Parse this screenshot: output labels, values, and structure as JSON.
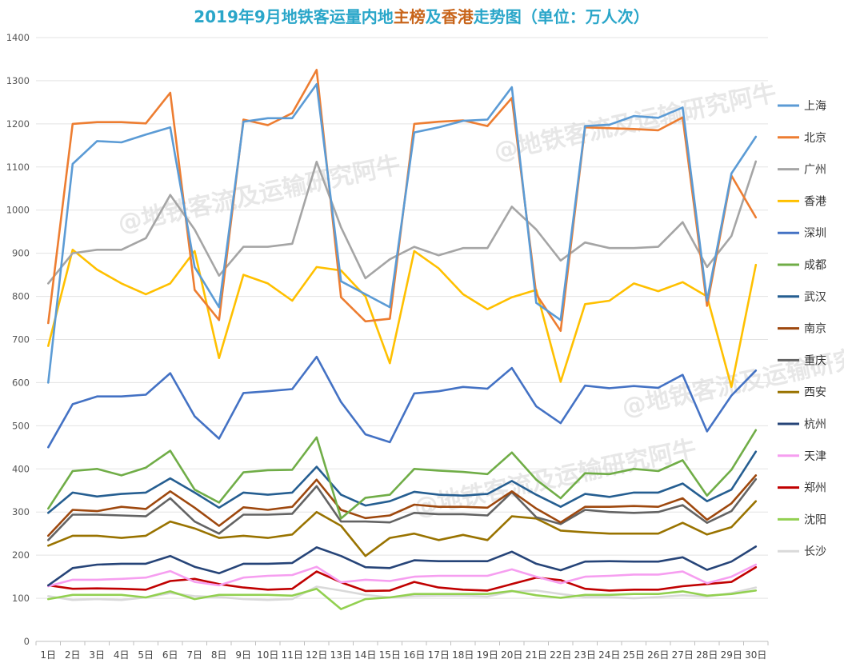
{
  "title_parts": [
    {
      "text": "2019年9月地铁客运量内地",
      "color": "#2aa6c9"
    },
    {
      "text": "主榜",
      "color": "#c8651b"
    },
    {
      "text": "及",
      "color": "#2aa6c9"
    },
    {
      "text": "香港",
      "color": "#c8651b"
    },
    {
      "text": "走势图（单位：万人次）",
      "color": "#2aa6c9"
    }
  ],
  "watermark": "@地铁客流及运输研究阿牛",
  "chart_data": {
    "type": "line",
    "title": "2019年9月地铁客运量内地主榜及香港走势图（单位：万人次）",
    "xlabel": "",
    "ylabel": "",
    "ylim": [
      0,
      1400
    ],
    "yticks": [
      0,
      100,
      200,
      300,
      400,
      500,
      600,
      700,
      800,
      900,
      1000,
      1100,
      1200,
      1300,
      1400
    ],
    "grid": true,
    "legend_position": "right",
    "categories": [
      "1日",
      "2日",
      "3日",
      "4日",
      "5日",
      "6日",
      "7日",
      "8日",
      "9日",
      "10日",
      "11日",
      "12日",
      "13日",
      "14日",
      "15日",
      "16日",
      "17日",
      "18日",
      "19日",
      "20日",
      "21日",
      "22日",
      "23日",
      "24日",
      "25日",
      "26日",
      "27日",
      "28日",
      "29日",
      "30日"
    ],
    "series": [
      {
        "name": "上海",
        "color": "#5b9bd5",
        "values": [
          600,
          1107,
          1160,
          1157,
          1175,
          1192,
          868,
          775,
          1205,
          1213,
          1213,
          1292,
          835,
          805,
          775,
          1180,
          1192,
          1207,
          1210,
          1285,
          785,
          745,
          1195,
          1198,
          1218,
          1214,
          1238,
          790,
          1085,
          1170
        ]
      },
      {
        "name": "北京",
        "color": "#ed7d31",
        "values": [
          738,
          1200,
          1204,
          1204,
          1201,
          1272,
          815,
          745,
          1210,
          1197,
          1225,
          1325,
          798,
          742,
          748,
          1200,
          1205,
          1208,
          1195,
          1260,
          805,
          720,
          1192,
          1190,
          1188,
          1185,
          1215,
          778,
          1080,
          983
        ]
      },
      {
        "name": "广州",
        "color": "#a5a5a5",
        "values": [
          830,
          900,
          908,
          908,
          935,
          1035,
          955,
          848,
          915,
          915,
          922,
          1112,
          960,
          842,
          886,
          915,
          895,
          912,
          912,
          1008,
          955,
          883,
          925,
          912,
          912,
          915,
          972,
          868,
          940,
          1113
        ]
      },
      {
        "name": "香港",
        "color": "#ffc000",
        "values": [
          685,
          908,
          862,
          830,
          805,
          830,
          905,
          657,
          850,
          830,
          790,
          868,
          860,
          800,
          645,
          905,
          865,
          805,
          770,
          798,
          815,
          602,
          782,
          790,
          830,
          812,
          833,
          800,
          590,
          873
        ]
      },
      {
        "name": "深圳",
        "color": "#4472c4",
        "values": [
          450,
          550,
          568,
          568,
          572,
          622,
          522,
          470,
          576,
          580,
          585,
          660,
          555,
          480,
          462,
          575,
          580,
          590,
          586,
          634,
          545,
          506,
          593,
          587,
          592,
          588,
          618,
          487,
          570,
          628
        ]
      },
      {
        "name": "成都",
        "color": "#70ad47",
        "values": [
          308,
          395,
          400,
          385,
          403,
          442,
          352,
          322,
          392,
          397,
          398,
          473,
          285,
          333,
          340,
          400,
          396,
          393,
          388,
          438,
          375,
          332,
          390,
          388,
          400,
          395,
          420,
          338,
          398,
          490
        ]
      },
      {
        "name": "武汉",
        "color": "#255e91",
        "values": [
          298,
          345,
          336,
          342,
          345,
          378,
          345,
          310,
          345,
          340,
          345,
          405,
          340,
          315,
          325,
          347,
          340,
          338,
          342,
          372,
          340,
          312,
          342,
          335,
          345,
          345,
          366,
          325,
          352,
          440
        ]
      },
      {
        "name": "南京",
        "color": "#9e480e",
        "values": [
          245,
          305,
          302,
          312,
          307,
          348,
          310,
          268,
          311,
          305,
          312,
          375,
          305,
          286,
          292,
          317,
          312,
          312,
          310,
          348,
          308,
          276,
          312,
          312,
          314,
          312,
          332,
          282,
          320,
          385
        ]
      },
      {
        "name": "重庆",
        "color": "#636363",
        "values": [
          235,
          294,
          294,
          292,
          290,
          332,
          278,
          250,
          294,
          294,
          296,
          360,
          278,
          278,
          276,
          298,
          295,
          295,
          292,
          346,
          288,
          272,
          305,
          300,
          298,
          300,
          316,
          275,
          302,
          376
        ]
      },
      {
        "name": "西安",
        "color": "#997300",
        "values": [
          222,
          245,
          245,
          240,
          245,
          278,
          262,
          240,
          245,
          240,
          248,
          300,
          268,
          198,
          240,
          250,
          235,
          247,
          235,
          290,
          285,
          257,
          253,
          250,
          250,
          250,
          275,
          248,
          265,
          325
        ]
      },
      {
        "name": "杭州",
        "color": "#264478",
        "values": [
          130,
          170,
          178,
          180,
          180,
          198,
          173,
          158,
          180,
          180,
          182,
          218,
          198,
          172,
          170,
          188,
          186,
          186,
          186,
          208,
          180,
          165,
          185,
          186,
          185,
          185,
          195,
          166,
          185,
          220
        ]
      },
      {
        "name": "天津",
        "color": "#f69ef0",
        "values": [
          128,
          143,
          143,
          145,
          148,
          163,
          138,
          130,
          148,
          152,
          154,
          173,
          137,
          143,
          140,
          150,
          152,
          152,
          152,
          167,
          150,
          135,
          150,
          152,
          155,
          155,
          162,
          135,
          150,
          178
        ]
      },
      {
        "name": "郑州",
        "color": "#c00000",
        "values": [
          130,
          122,
          123,
          122,
          120,
          140,
          145,
          133,
          125,
          120,
          122,
          162,
          137,
          117,
          118,
          138,
          125,
          120,
          118,
          133,
          148,
          142,
          122,
          118,
          120,
          120,
          128,
          133,
          138,
          172
        ]
      },
      {
        "name": "沈阳",
        "color": "#92d050",
        "values": [
          98,
          108,
          108,
          108,
          102,
          116,
          98,
          108,
          108,
          108,
          106,
          122,
          75,
          98,
          102,
          110,
          110,
          110,
          110,
          117,
          107,
          101,
          108,
          108,
          110,
          110,
          116,
          106,
          110,
          118
        ]
      },
      {
        "name": "长沙",
        "color": "#d9d9d9",
        "values": [
          105,
          96,
          98,
          96,
          102,
          112,
          105,
          103,
          98,
          96,
          98,
          127,
          118,
          108,
          102,
          105,
          106,
          106,
          104,
          116,
          118,
          110,
          103,
          103,
          100,
          103,
          107,
          104,
          112,
          125
        ]
      }
    ]
  }
}
